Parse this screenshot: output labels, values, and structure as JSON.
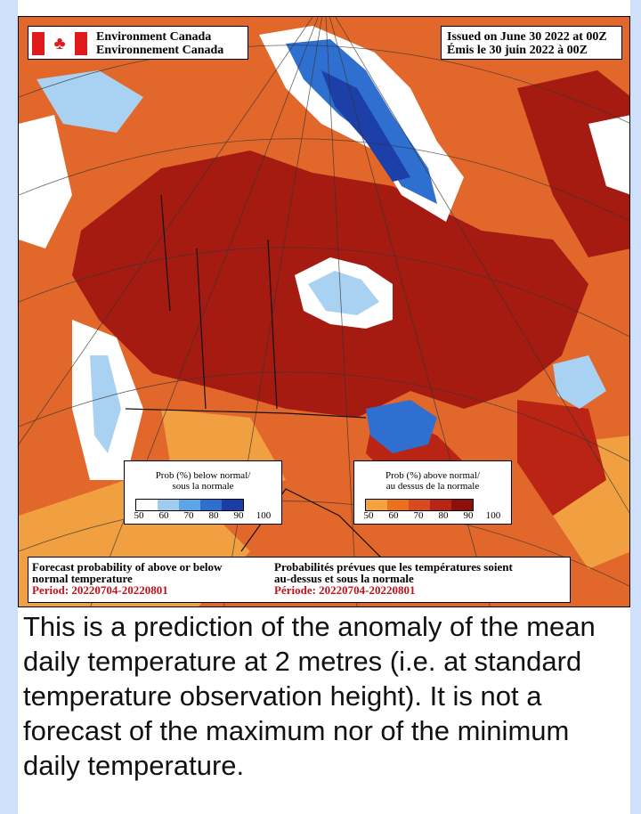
{
  "header": {
    "agency_en": "Environment Canada",
    "agency_fr": "Environnement Canada",
    "issued_en": "Issued on June 30 2022 at 00Z",
    "issued_fr": "Émis le 30 juin 2022 à 00Z"
  },
  "legend_below": {
    "title_en": "Prob (%) below normal/",
    "title_fr": "sous la normale",
    "ticks": [
      "50",
      "60",
      "70",
      "80",
      "90",
      "100"
    ],
    "colors": [
      "#ffffff",
      "#9ecbf0",
      "#5aa6e6",
      "#2c6fd0",
      "#1a3ea8"
    ]
  },
  "legend_above": {
    "title_en": "Prob (%) above normal/",
    "title_fr": "au dessus de la normale",
    "ticks": [
      "50",
      "60",
      "70",
      "80",
      "90",
      "100"
    ],
    "colors": [
      "#f3a23c",
      "#ea6f1f",
      "#d9481e",
      "#b92414",
      "#8e0f0c"
    ]
  },
  "caption": {
    "en_line1": "Forecast probability of above or below",
    "en_line2": "normal temperature",
    "en_period": "Period: 20220704-20220801",
    "fr_line1": "Probabilités prévues que les températures soient",
    "fr_line2": "au-dessus et sous la normale",
    "fr_period": "Période: 20220704-20220801"
  },
  "description": "This is a prediction of the anomaly of the mean daily temperature at 2 metres (i.e. at standard temperature observation height). It is not a forecast of the maximum nor of the minimum daily temperature.",
  "colors": {
    "strong_above": "#a51b12",
    "above": "#c8442a",
    "moderate_above": "#e2672a",
    "weak_above": "#f0a040",
    "normal": "#ffffff",
    "weak_below": "#a9d1f2",
    "below": "#2f6fd0",
    "strong_below": "#1c3fa8"
  }
}
